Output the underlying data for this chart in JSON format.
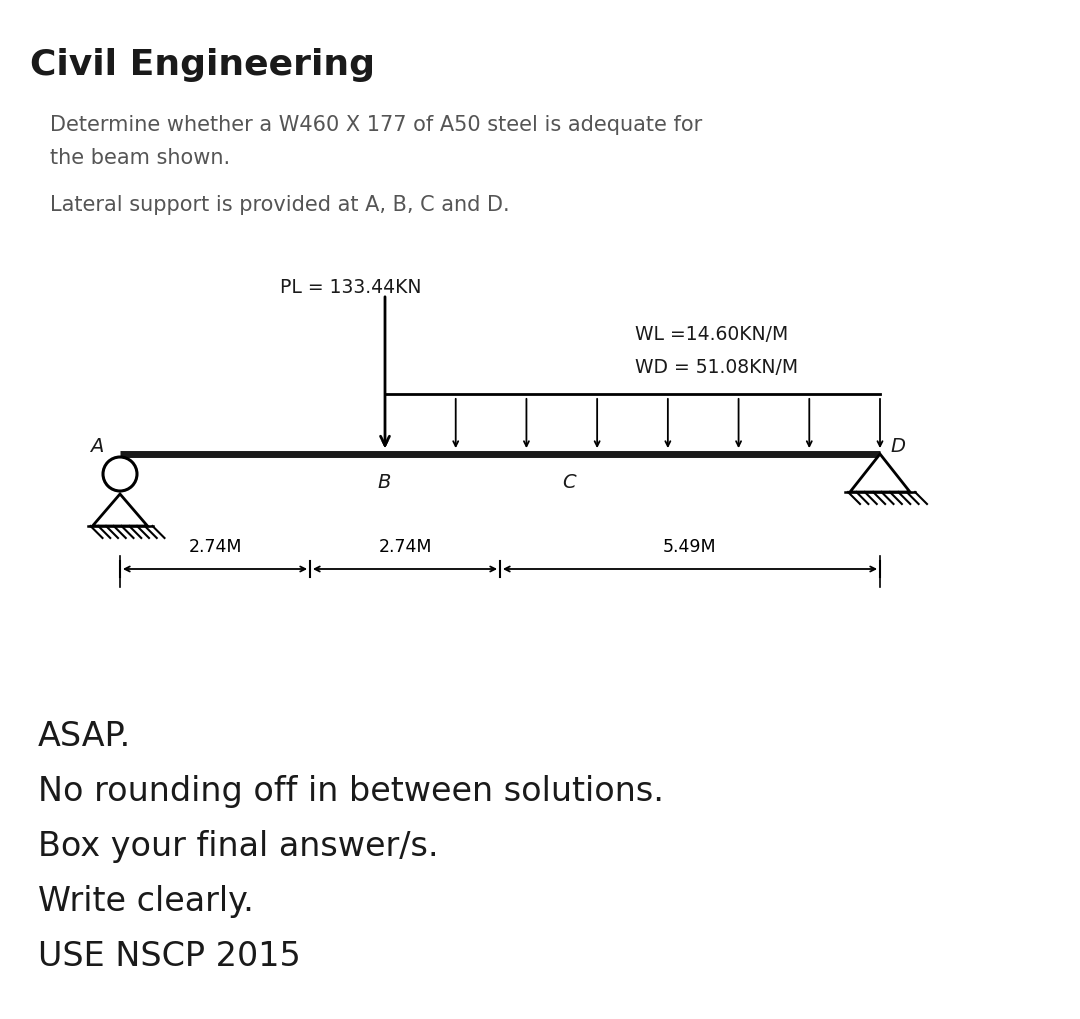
{
  "title": "Civil Engineering",
  "subtitle1": "Determine whether a W460 X 177 of A50 steel is adequate for",
  "subtitle2": "the beam shown.",
  "subtitle3": "Lateral support is provided at A, B, C and D.",
  "pl_label": "PL = 133.44KN",
  "wl_label": "WL =14.60KN/M",
  "wd_label": "WD = 51.08KN/M",
  "dim1": "2.74M",
  "dim2": "2.74M",
  "dim3": "5.49M",
  "point_A": "A",
  "point_B": "B",
  "point_C": "C",
  "point_D": "D",
  "footer_lines": [
    "ASAP.",
    "No rounding off in between solutions.",
    "Box your final answer/s.",
    "Write clearly.",
    "USE NSCP 2015"
  ],
  "bg_color": "#ffffff",
  "text_color": "#1a1a1a",
  "gray_text": "#555555",
  "beam_color": "#1a1a1a"
}
